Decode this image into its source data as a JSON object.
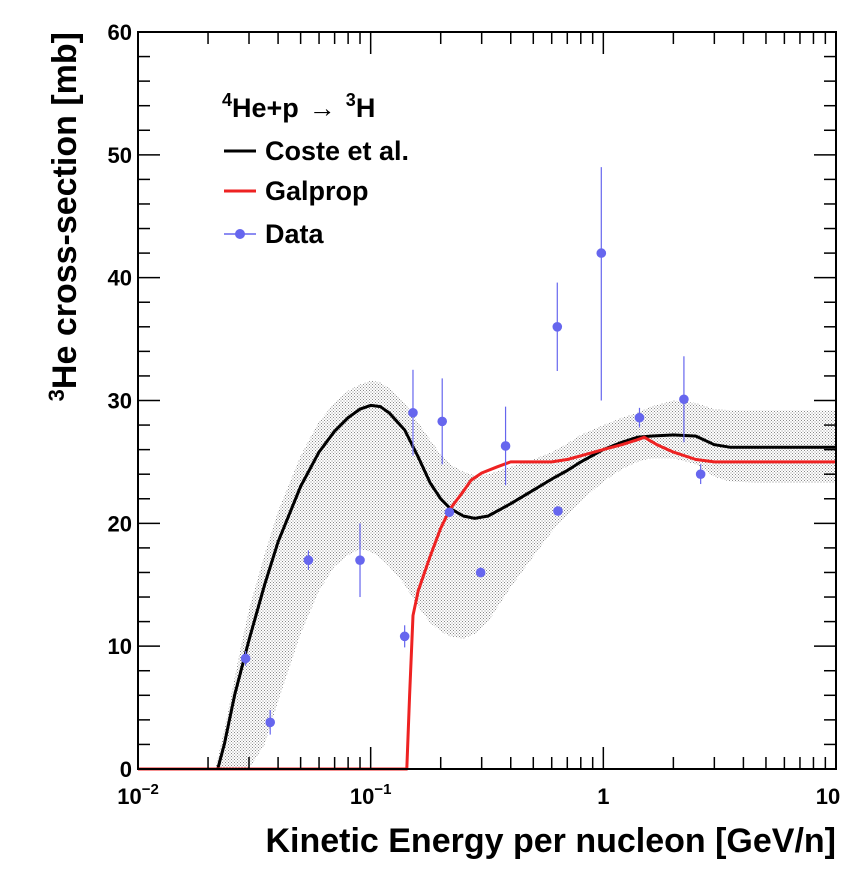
{
  "chart_data": {
    "type": "line",
    "x_scale": "log",
    "xlim": [
      0.01,
      10
    ],
    "ylim": [
      0,
      60
    ],
    "xlabel": "Kinetic Energy per nucleon [GeV/n]",
    "ylabel": {
      "sup": "3",
      "text": "He cross-section [mb]"
    },
    "x_ticks": [
      {
        "value": 0.01,
        "base": "10",
        "exp": "−2"
      },
      {
        "value": 0.1,
        "base": "10",
        "exp": "−1"
      },
      {
        "value": 1,
        "base": "1",
        "exp": ""
      },
      {
        "value": 10,
        "base": "10",
        "exp": ""
      }
    ],
    "y_ticks": [
      {
        "value": 0,
        "label": "0"
      },
      {
        "value": 10,
        "label": "10"
      },
      {
        "value": 20,
        "label": "20"
      },
      {
        "value": 30,
        "label": "30"
      },
      {
        "value": 40,
        "label": "40"
      },
      {
        "value": 50,
        "label": "50"
      },
      {
        "value": 60,
        "label": "60"
      }
    ],
    "legend": {
      "title": {
        "sup1": "4",
        "part1": "He+p",
        "arrow": "→",
        "sup2": "3",
        "part2": "H"
      },
      "entries": [
        {
          "label": "Coste et al.",
          "color": "#000000",
          "kind": "line"
        },
        {
          "label": "Galprop",
          "color": "#ee2222",
          "kind": "line"
        },
        {
          "label": "Data",
          "color": "#6666ee",
          "kind": "marker"
        }
      ]
    },
    "colors": {
      "coste": "#000000",
      "galprop": "#ee2222",
      "data": "#6666ee",
      "band": "#8a8a8a"
    },
    "series": [
      {
        "name": "Coste et al.",
        "x": [
          0.01,
          0.022,
          0.0235,
          0.026,
          0.03,
          0.035,
          0.04,
          0.05,
          0.06,
          0.07,
          0.08,
          0.09,
          0.1,
          0.11,
          0.12,
          0.14,
          0.16,
          0.18,
          0.2,
          0.22,
          0.25,
          0.28,
          0.32,
          0.4,
          0.5,
          0.6,
          0.7,
          0.8,
          1.0,
          1.2,
          1.4,
          1.6,
          2.0,
          2.5,
          3.0,
          3.5,
          5.0,
          10.0
        ],
        "y": [
          0,
          0,
          2,
          6,
          10.5,
          15,
          18.5,
          23,
          25.8,
          27.5,
          28.6,
          29.3,
          29.6,
          29.5,
          29,
          27.6,
          25.4,
          23.3,
          22,
          21.2,
          20.6,
          20.4,
          20.6,
          21.6,
          22.7,
          23.6,
          24.3,
          25,
          26,
          26.6,
          27,
          27.1,
          27.2,
          27.1,
          26.4,
          26.2,
          26.2,
          26.2
        ]
      },
      {
        "name": "Galprop",
        "x": [
          0.01,
          0.143,
          0.147,
          0.152,
          0.16,
          0.18,
          0.2,
          0.22,
          0.25,
          0.27,
          0.3,
          0.35,
          0.4,
          0.5,
          0.6,
          0.7,
          0.8,
          1.0,
          1.2,
          1.4,
          1.5,
          1.7,
          2.0,
          2.5,
          3.0,
          5.0,
          10.0
        ],
        "y": [
          0,
          0,
          6,
          12.5,
          14.5,
          17.3,
          19.6,
          21.2,
          22.6,
          23.5,
          24.1,
          24.6,
          25,
          25,
          25,
          25.2,
          25.5,
          26,
          26.4,
          26.8,
          27,
          26.4,
          25.8,
          25.2,
          25,
          25,
          25
        ]
      }
    ],
    "band": {
      "name": "Coste et al. uncertainty",
      "x": [
        0.0215,
        0.024,
        0.027,
        0.03,
        0.035,
        0.04,
        0.05,
        0.06,
        0.07,
        0.08,
        0.09,
        0.1,
        0.11,
        0.12,
        0.14,
        0.16,
        0.18,
        0.2,
        0.22,
        0.25,
        0.28,
        0.32,
        0.4,
        0.5,
        0.6,
        0.7,
        0.8,
        1.0,
        1.2,
        1.4,
        1.6,
        2.0,
        2.5,
        3.0,
        3.5,
        5.0,
        10.0
      ],
      "upper": [
        0,
        4,
        9,
        13,
        17.5,
        21,
        25.5,
        28.3,
        29.8,
        30.8,
        31.3,
        31.6,
        31.5,
        31,
        29.8,
        28.2,
        26.8,
        25.6,
        24.8,
        24.2,
        23.9,
        24,
        24.6,
        25.2,
        25.8,
        26.5,
        27.2,
        28,
        28.6,
        29,
        29.5,
        30,
        29.8,
        29.3,
        29.2,
        29.2,
        29.2
      ],
      "lower": [
        0,
        0,
        0,
        0,
        2,
        5.5,
        11,
        14.5,
        16.5,
        17.4,
        17.9,
        17.7,
        17.2,
        16.5,
        15,
        13.2,
        11.9,
        11.2,
        10.8,
        10.6,
        11,
        12,
        14.8,
        17.3,
        19.3,
        20.7,
        21.8,
        23.4,
        24.4,
        25,
        25.3,
        25.3,
        24.8,
        23.8,
        23.4,
        23.3,
        23.3
      ]
    },
    "data_points": [
      {
        "x": 0.029,
        "y": 9.0,
        "err_low": 0.6,
        "err_high": 0.6
      },
      {
        "x": 0.037,
        "y": 3.8,
        "err_low": 1.0,
        "err_high": 1.0
      },
      {
        "x": 0.054,
        "y": 17.0,
        "err_low": 0.8,
        "err_high": 0.8
      },
      {
        "x": 0.09,
        "y": 17.0,
        "err_low": 3.0,
        "err_high": 3.0
      },
      {
        "x": 0.14,
        "y": 10.8,
        "err_low": 0.9,
        "err_high": 0.9
      },
      {
        "x": 0.152,
        "y": 29.0,
        "err_low": 3.5,
        "err_high": 3.5
      },
      {
        "x": 0.203,
        "y": 28.3,
        "err_low": 3.5,
        "err_high": 3.5
      },
      {
        "x": 0.218,
        "y": 20.9,
        "err_low": 0.3,
        "err_high": 0.3
      },
      {
        "x": 0.297,
        "y": 16.0,
        "err_low": 0.4,
        "err_high": 0.4
      },
      {
        "x": 0.38,
        "y": 26.3,
        "err_low": 3.2,
        "err_high": 3.2
      },
      {
        "x": 0.634,
        "y": 36.0,
        "err_low": 3.6,
        "err_high": 3.6
      },
      {
        "x": 0.638,
        "y": 21.0,
        "err_low": 0.3,
        "err_high": 0.3
      },
      {
        "x": 0.98,
        "y": 42.0,
        "err_low": 12.0,
        "err_high": 7.0
      },
      {
        "x": 1.43,
        "y": 28.6,
        "err_low": 0.8,
        "err_high": 0.8
      },
      {
        "x": 2.22,
        "y": 30.1,
        "err_low": 3.5,
        "err_high": 3.5
      },
      {
        "x": 2.62,
        "y": 24.0,
        "err_low": 0.8,
        "err_high": 0.8
      }
    ]
  }
}
